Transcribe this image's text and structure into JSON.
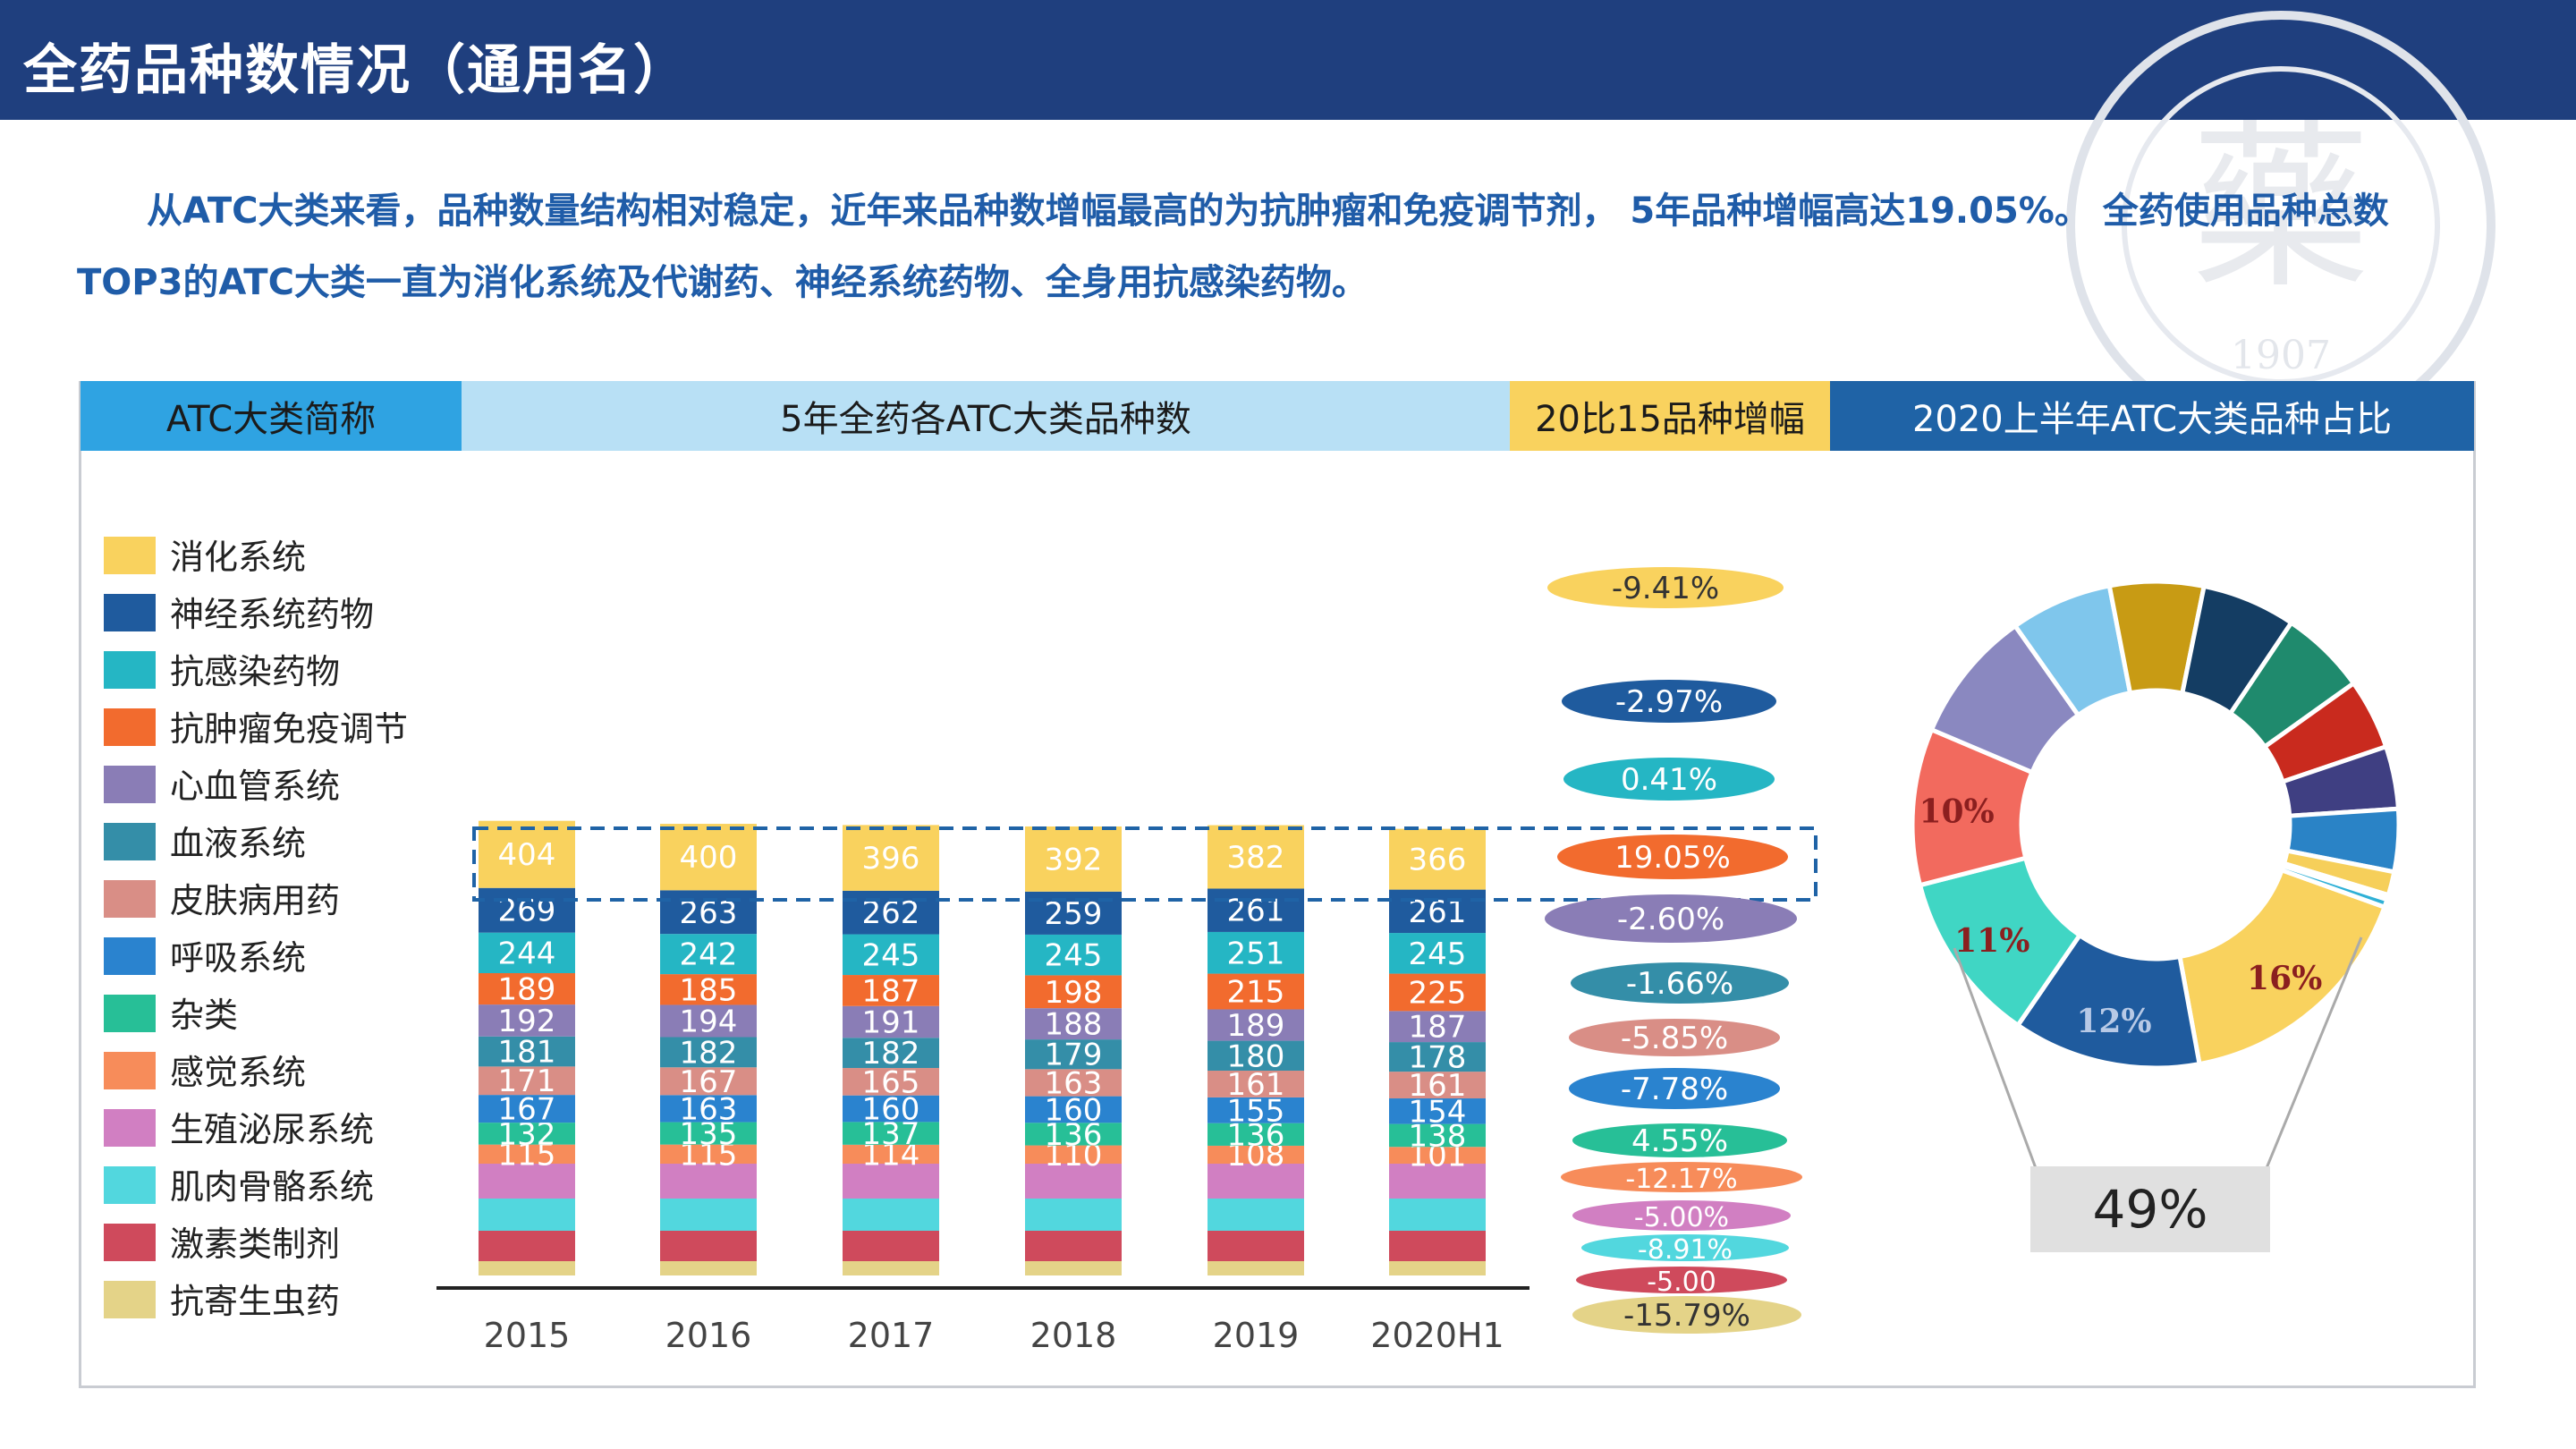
{
  "header": {
    "title": "全药品种数情况（通用名）"
  },
  "intro_text": "从ATC大类来看，品种数量结构相对稳定，近年来品种数增幅最高的为抗肿瘤和免疫调节剂， 5年品种增幅高达19.05%。 全药使用品种总数TOP3的ATC大类一直为消化系统及代谢药、神经系统药物、全身用抗感染药物。",
  "table_headers": {
    "category": "ATC大类简称",
    "counts": "5年全药各ATC大类品种数",
    "growth": "20比15品种增幅",
    "share": "2020上半年ATC大类品种占比"
  },
  "watermark": {
    "year": "1907"
  },
  "chart_data": [
    {
      "type": "bar",
      "stacked": true,
      "categories": [
        "2015",
        "2016",
        "2017",
        "2018",
        "2019",
        "2020H1"
      ],
      "series": [
        {
          "name": "消化系统",
          "color": "#f9d25e",
          "values": [
            404,
            400,
            396,
            392,
            382,
            366
          ]
        },
        {
          "name": "神经系统药物",
          "color": "#1f5b9e",
          "values": [
            269,
            263,
            262,
            259,
            261,
            261
          ]
        },
        {
          "name": "抗感染药物",
          "color": "#25b6c4",
          "values": [
            244,
            242,
            245,
            245,
            251,
            245
          ]
        },
        {
          "name": "抗肿瘤免疫调节",
          "color": "#f26b2e",
          "values": [
            189,
            185,
            187,
            198,
            215,
            225
          ]
        },
        {
          "name": "心血管系统",
          "color": "#8a7db6",
          "values": [
            192,
            194,
            191,
            188,
            189,
            187
          ]
        },
        {
          "name": "血液系统",
          "color": "#348ea8",
          "values": [
            181,
            182,
            182,
            179,
            180,
            178
          ]
        },
        {
          "name": "皮肤病用药",
          "color": "#d98e86",
          "values": [
            171,
            167,
            165,
            163,
            161,
            161
          ]
        },
        {
          "name": "呼吸系统",
          "color": "#2a83cf",
          "values": [
            167,
            163,
            160,
            160,
            155,
            154
          ]
        },
        {
          "name": "杂类",
          "color": "#27bf97",
          "values": [
            132,
            135,
            137,
            136,
            136,
            138
          ]
        },
        {
          "name": "感觉系统",
          "color": "#f78c5a",
          "values": [
            115,
            115,
            114,
            110,
            108,
            101
          ]
        },
        {
          "name": "生殖泌尿系统",
          "color": "#d17fc2",
          "values": [
            null,
            null,
            null,
            null,
            null,
            null
          ]
        },
        {
          "name": "肌肉骨骼系统",
          "color": "#52d7de",
          "values": [
            null,
            null,
            null,
            null,
            null,
            null
          ]
        },
        {
          "name": "激素类制剂",
          "color": "#cf4a5c",
          "values": [
            null,
            null,
            null,
            null,
            null,
            null
          ]
        },
        {
          "name": "抗寄生虫药",
          "color": "#e4d388",
          "values": [
            null,
            null,
            null,
            null,
            null,
            null
          ]
        }
      ],
      "growth_labels": [
        "-9.41%",
        "-2.97%",
        "0.41%",
        "19.05%",
        "-2.60%",
        "-1.66%",
        "-5.85%",
        "-7.78%",
        "4.55%",
        "-12.17%",
        "-5.00%",
        "-8.91%",
        "-5.00",
        "-15.79%"
      ],
      "highlight_series": "抗肿瘤免疫调节"
    },
    {
      "type": "pie",
      "donut": true,
      "slices": [
        {
          "color": "#f9d25e",
          "value": 16,
          "label": "16%"
        },
        {
          "color": "#1f5b9e",
          "value": 12,
          "label": "12%"
        },
        {
          "color": "#40d6c4",
          "value": 11,
          "label": "11%"
        },
        {
          "color": "#f26a5e",
          "value": 10,
          "label": "10%"
        },
        {
          "color": "#8a88c0",
          "value": 8.5
        },
        {
          "color": "#7fc6ec",
          "value": 6.5
        },
        {
          "color": "#c89b14",
          "value": 6
        },
        {
          "color": "#143d63",
          "value": 6
        },
        {
          "color": "#1f8a6d",
          "value": 5.5
        },
        {
          "color": "#c92a1e",
          "value": 4.5
        },
        {
          "color": "#3f3f82",
          "value": 4
        },
        {
          "color": "#2a83c6",
          "value": 4
        },
        {
          "color": "#f6cf5a",
          "value": 1.5
        },
        {
          "color": "#ffffff",
          "value": 0.3
        },
        {
          "color": "#2fb0d6",
          "value": 0.5
        }
      ],
      "callout_label": "49%"
    }
  ]
}
